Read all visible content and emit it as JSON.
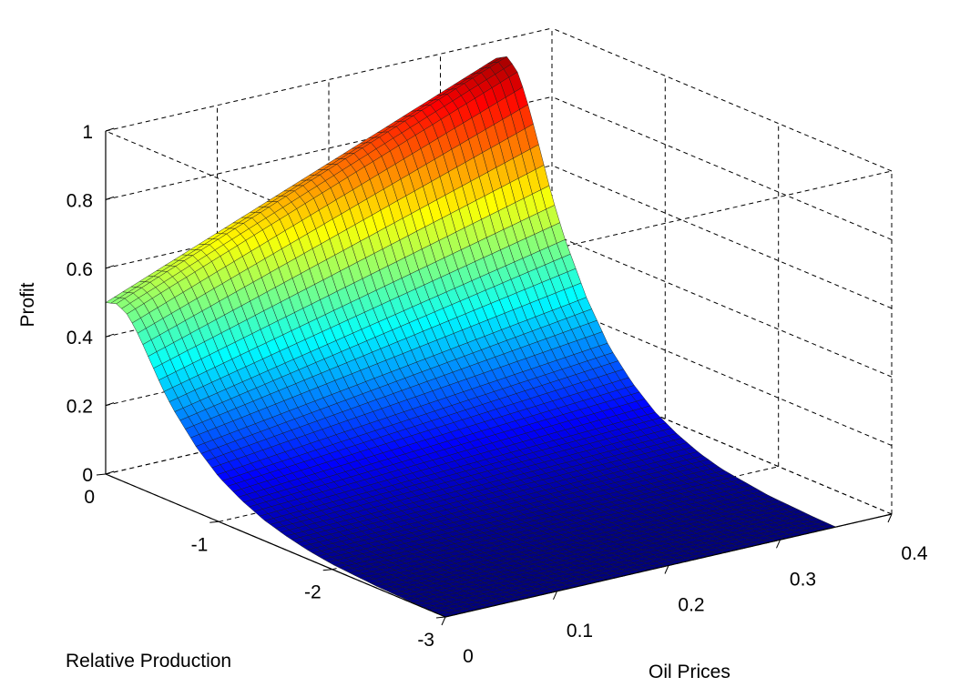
{
  "chart_data": {
    "type": "surface",
    "xlabel": "Oil Prices",
    "ylabel": "Relative Production",
    "zlabel": "Profit",
    "xlim": [
      0,
      0.4
    ],
    "ylim": [
      -3,
      0
    ],
    "zlim": [
      0,
      1
    ],
    "xticks": [
      0,
      0.1,
      0.2,
      0.3,
      0.4
    ],
    "xtick_labels": [
      "0",
      "0.1",
      "0.2",
      "0.3",
      "0.4"
    ],
    "yticks": [
      0,
      -1,
      -2,
      -3
    ],
    "ytick_labels": [
      "0",
      "-1",
      "-2",
      "-3"
    ],
    "zticks": [
      0,
      0.2,
      0.4,
      0.6,
      0.8,
      1
    ],
    "ztick_labels": [
      "0",
      "0.2",
      "0.4",
      "0.6",
      "0.8",
      "1"
    ],
    "grid": true,
    "box": true,
    "colormap": "jet",
    "surface_x_range": [
      0,
      0.35
    ],
    "surface_y_range": [
      -3,
      0
    ],
    "profile": {
      "relative_production": [
        0,
        -0.1,
        -0.2,
        -0.3,
        -0.4,
        -0.5,
        -0.6,
        -0.8,
        -1.0,
        -1.2,
        -1.4,
        -1.6,
        -1.8,
        -2.0,
        -2.2,
        -2.4,
        -2.6,
        -2.8,
        -3.0
      ],
      "profit_at_min_oil_price": [
        0.5,
        0.51,
        0.49,
        0.44,
        0.38,
        0.32,
        0.27,
        0.19,
        0.13,
        0.09,
        0.06,
        0.04,
        0.025,
        0.015,
        0.01,
        0.005,
        0.003,
        0.001,
        0.0
      ],
      "profit_scale_at_max_oil_price": 1.9
    }
  }
}
